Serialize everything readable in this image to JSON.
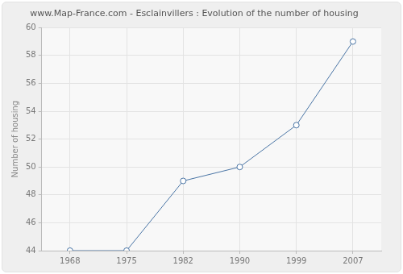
{
  "chart_data": {
    "type": "line",
    "title": "www.Map-France.com - Esclainvillers : Evolution of the number of housing",
    "y_label": "Number of housing",
    "categories": [
      "1968",
      "1975",
      "1982",
      "1990",
      "1999",
      "2007"
    ],
    "values": [
      44,
      44,
      49,
      50,
      53,
      59
    ],
    "color": "#4a75a5",
    "marker": "circle",
    "ylim": [
      44,
      60
    ],
    "yticks": [
      44,
      46,
      48,
      50,
      52,
      54,
      56,
      58,
      60
    ],
    "grid": true
  }
}
